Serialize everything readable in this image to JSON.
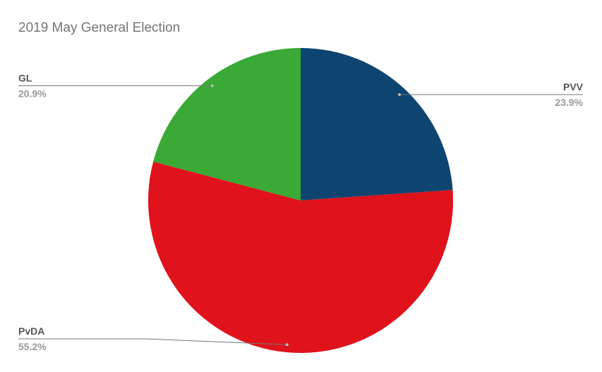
{
  "chart_data": {
    "type": "pie",
    "title": "2019 May General Election",
    "labels": [
      "PVV",
      "PvDA",
      "GL"
    ],
    "values": [
      23.9,
      55.2,
      20.9
    ],
    "value_labels": [
      "23.9%",
      "55.2%",
      "20.9%"
    ],
    "colors": [
      "#0e4470",
      "#e0121b",
      "#3aa935"
    ]
  }
}
